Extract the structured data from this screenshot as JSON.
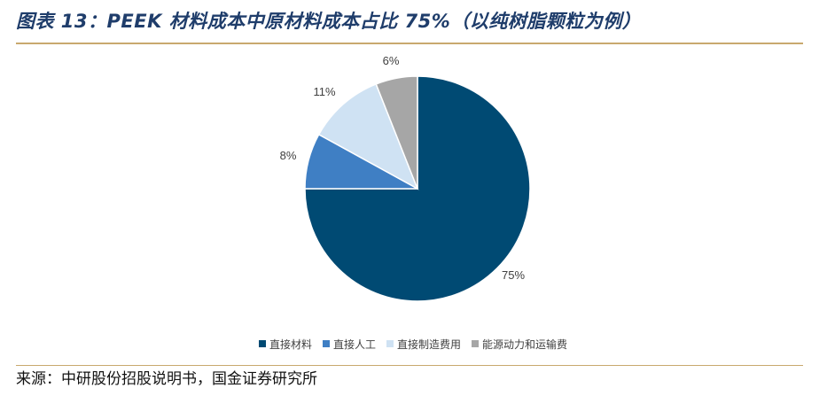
{
  "title": "图表 13：PEEK 材料成本中原材料成本占比 75%（以纯树脂颗粒为例）",
  "source": "来源：中研股份招股说明书，国金证券研究所",
  "chart_data": {
    "type": "pie",
    "title": "",
    "legend_position": "bottom",
    "categories": [
      "直接材料",
      "直接人工",
      "直接制造费用",
      "能源动力和运输费"
    ],
    "values": [
      75,
      8,
      11,
      6
    ],
    "labels": [
      "75%",
      "8%",
      "11%",
      "6%"
    ],
    "colors": [
      "#004a73",
      "#3f7fc4",
      "#cfe2f3",
      "#a6a6a6"
    ]
  }
}
